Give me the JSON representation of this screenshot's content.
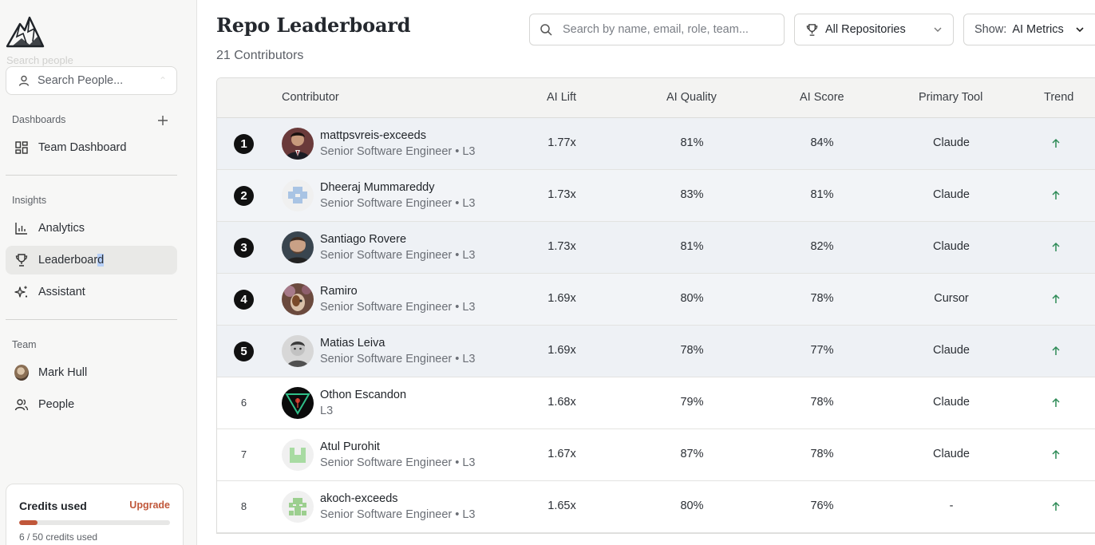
{
  "sidebar": {
    "ghost_search_text": "Search people",
    "search_placeholder": "Search People...",
    "dashboards_label": "Dashboards",
    "team_dashboard": "Team Dashboard",
    "insights_label": "Insights",
    "analytics": "Analytics",
    "leaderboard_main": "Leaderboar",
    "leaderboard_sel": "d",
    "assistant": "Assistant",
    "team_label": "Team",
    "user_name": "Mark Hull",
    "people": "People",
    "credits": {
      "title": "Credits used",
      "upgrade": "Upgrade",
      "used_text": "6 / 50 credits used",
      "used": 6,
      "total": 50
    }
  },
  "header": {
    "title": "Repo Leaderboard",
    "subtitle": "21 Contributors",
    "search_placeholder": "Search by name, email, role, team...",
    "repo_filter": "All Repositories",
    "show_label": "Show:",
    "show_value": "AI Metrics"
  },
  "table": {
    "columns": [
      "Contributor",
      "AI Lift",
      "AI Quality",
      "AI Score",
      "Primary Tool",
      "Trend"
    ],
    "rows": [
      {
        "rank": "1",
        "name": "mattpsvreis-exceeds",
        "role": "Senior Software Engineer • L3",
        "lift": "1.77x",
        "quality": "81%",
        "score": "84%",
        "tool": "Claude",
        "trend": "up"
      },
      {
        "rank": "2",
        "name": "Dheeraj Mummareddy",
        "role": "Senior Software Engineer • L3",
        "lift": "1.73x",
        "quality": "83%",
        "score": "81%",
        "tool": "Claude",
        "trend": "up"
      },
      {
        "rank": "3",
        "name": "Santiago Rovere",
        "role": "Senior Software Engineer • L3",
        "lift": "1.73x",
        "quality": "81%",
        "score": "82%",
        "tool": "Claude",
        "trend": "up"
      },
      {
        "rank": "4",
        "name": "Ramiro",
        "role": "Senior Software Engineer • L3",
        "lift": "1.69x",
        "quality": "80%",
        "score": "78%",
        "tool": "Cursor",
        "trend": "up"
      },
      {
        "rank": "5",
        "name": "Matias Leiva",
        "role": "Senior Software Engineer • L3",
        "lift": "1.69x",
        "quality": "78%",
        "score": "77%",
        "tool": "Claude",
        "trend": "up"
      },
      {
        "rank": "6",
        "name": "Othon Escandon",
        "role": "L3",
        "lift": "1.68x",
        "quality": "79%",
        "score": "78%",
        "tool": "Claude",
        "trend": "up"
      },
      {
        "rank": "7",
        "name": "Atul Purohit",
        "role": "Senior Software Engineer • L3",
        "lift": "1.67x",
        "quality": "87%",
        "score": "78%",
        "tool": "Claude",
        "trend": "up"
      },
      {
        "rank": "8",
        "name": "akoch-exceeds",
        "role": "Senior Software Engineer • L3",
        "lift": "1.65x",
        "quality": "80%",
        "score": "76%",
        "tool": "-",
        "trend": "up"
      }
    ]
  },
  "colors": {
    "accent": "#c0573a",
    "trend_up": "#2e8b57",
    "top_row_bg": "#eef1f5"
  }
}
